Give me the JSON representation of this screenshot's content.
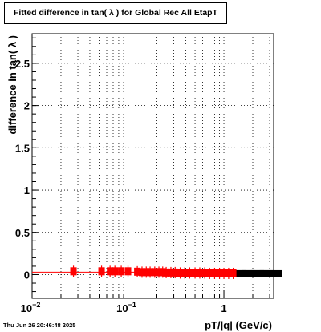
{
  "chart_data": {
    "type": "scatter",
    "title": "Fitted difference in tan( λ ) for Global Rec All EtapT",
    "xlabel": "pT/|q| (GeV/c)",
    "ylabel": "difference in tan( λ )",
    "x_scale": "log",
    "xlim": [
      0.01,
      3.3
    ],
    "ylim": [
      -0.28,
      2.85
    ],
    "grid": true,
    "x_ticks": [
      {
        "base": "10",
        "exp": "−2",
        "value": 0.01
      },
      {
        "base": "10",
        "exp": "−1",
        "value": 0.1
      },
      {
        "base": "1",
        "exp": "",
        "value": 1
      }
    ],
    "y_ticks": [
      {
        "label": "0",
        "value": 0
      },
      {
        "label": "0.5",
        "value": 0.5
      },
      {
        "label": "1",
        "value": 1
      },
      {
        "label": "1.5",
        "value": 1.5
      },
      {
        "label": "2",
        "value": 2
      },
      {
        "label": "2.5",
        "value": 2.5
      }
    ],
    "series": [
      {
        "color": "#ff0000",
        "x": [
          0.027,
          0.053,
          0.065,
          0.073,
          0.085,
          0.1,
          0.125,
          0.14,
          0.155,
          0.17,
          0.19,
          0.21,
          0.23,
          0.25,
          0.28,
          0.31,
          0.35,
          0.39,
          0.44,
          0.5,
          0.56,
          0.63,
          0.71,
          0.8,
          0.9,
          1.0,
          1.12,
          1.25
        ],
        "y": [
          0.03,
          0.03,
          0.03,
          0.03,
          0.03,
          0.03,
          0.025,
          0.02,
          0.02,
          0.02,
          0.02,
          0.02,
          0.02,
          0.015,
          0.015,
          0.015,
          0.01,
          0.01,
          0.01,
          0.01,
          0.01,
          0.01,
          0.005,
          0.005,
          0.005,
          0.005,
          0.005,
          0.005
        ]
      },
      {
        "color": "#000000",
        "x": [
          0.27,
          0.32,
          0.4,
          0.5,
          0.63,
          0.8,
          1.0,
          1.3,
          1.6,
          2.0,
          2.5,
          3.1
        ],
        "y": [
          0.02,
          0.02,
          0.015,
          0.01,
          0.01,
          0.005,
          0.005,
          0.005,
          0.005,
          0.005,
          0.005,
          0.005
        ]
      }
    ],
    "fit_line": {
      "color": "#ff0000",
      "y": 0.03,
      "x_range": [
        0.01,
        0.13
      ]
    }
  },
  "footer": {
    "timestamp": "Thu Jun 26 20:46:48 2025"
  }
}
